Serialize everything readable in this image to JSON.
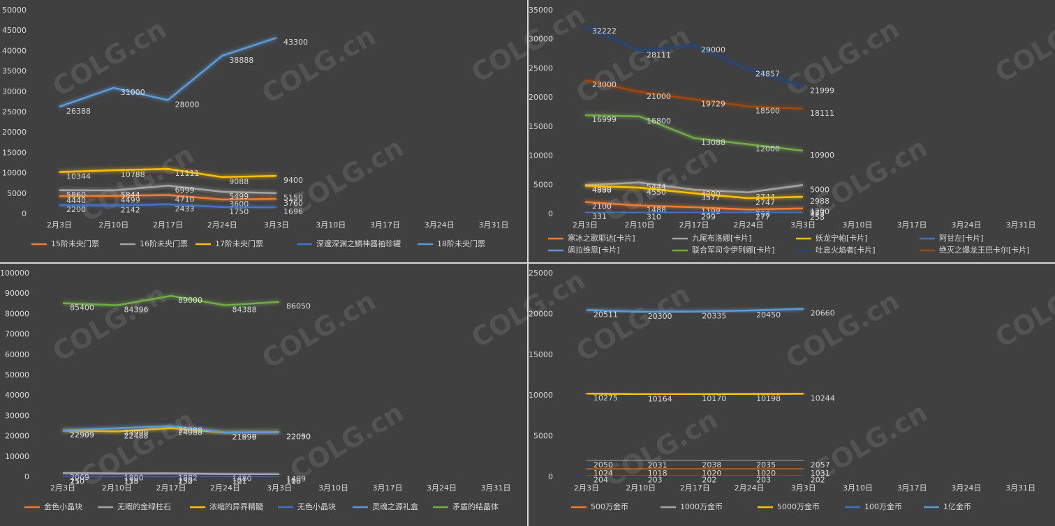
{
  "watermark": "COLG.cn",
  "chart_data": [
    {
      "type": "line",
      "grid": false,
      "categories": [
        "2月3日",
        "2月10日",
        "2月17日",
        "2月24日",
        "3月3日",
        "3月10日",
        "3月17日",
        "3月24日",
        "3月31日"
      ],
      "ylim": [
        0,
        50000
      ],
      "yticks": [
        0,
        5000,
        10000,
        15000,
        20000,
        25000,
        30000,
        35000,
        40000,
        45000,
        50000
      ],
      "series": [
        {
          "name": "15阶未央门票",
          "color": "#ed7d31",
          "values": [
            4440,
            4499,
            4710,
            3600,
            3760,
            null,
            null,
            null,
            null
          ]
        },
        {
          "name": "16阶未央门票",
          "color": "#a5a5a5",
          "values": [
            5860,
            5844,
            6999,
            5499,
            5150,
            null,
            null,
            null,
            null
          ]
        },
        {
          "name": "17阶未央门票",
          "color": "#ffc000",
          "values": [
            10344,
            10788,
            11111,
            9088,
            9400,
            null,
            null,
            null,
            null
          ]
        },
        {
          "name": "深邃深渊之鳞神器袖珍罐",
          "color": "#4472c4",
          "values": [
            2200,
            2142,
            2433,
            1750,
            1696,
            null,
            null,
            null,
            null
          ]
        },
        {
          "name": "18阶未央门票",
          "color": "#5b9bd5",
          "values": [
            26388,
            31000,
            28000,
            38888,
            43300,
            null,
            null,
            null,
            null
          ]
        }
      ]
    },
    {
      "type": "line",
      "grid": false,
      "categories": [
        "2月3日",
        "2月10日",
        "2月17日",
        "2月24日",
        "3月3日",
        "3月10日",
        "3月17日",
        "3月24日",
        "3月31日"
      ],
      "ylim": [
        0,
        35000
      ],
      "yticks": [
        0,
        5000,
        10000,
        15000,
        20000,
        25000,
        30000,
        35000
      ],
      "series": [
        {
          "name": "寒冰之歌耶达[卡片]",
          "color": "#ed7d31",
          "values": [
            2100,
            1488,
            1198,
            798,
            983,
            null,
            null,
            null,
            null
          ]
        },
        {
          "name": "九尾布洛娜[卡片]",
          "color": "#a5a5a5",
          "values": [
            4990,
            5444,
            4200,
            3744,
            5000,
            null,
            null,
            null,
            null
          ]
        },
        {
          "name": "妖龙宁帕[卡片]",
          "color": "#ffc000",
          "values": [
            4888,
            4550,
            3577,
            2747,
            2988,
            null,
            null,
            null,
            null
          ]
        },
        {
          "name": "阿甘左[卡片]",
          "color": "#4472c4",
          "values": [
            331,
            310,
            299,
            277,
            258,
            null,
            null,
            null,
            null
          ]
        },
        {
          "name": "飒拉维恩[卡片]",
          "color": "#5b9bd5",
          "values": [
            null,
            null,
            null,
            null,
            1200,
            null,
            null,
            null,
            null
          ]
        },
        {
          "name": "联合军司令伊列娜[卡片]",
          "color": "#70ad47",
          "values": [
            16999,
            16800,
            13088,
            12000,
            10900,
            null,
            null,
            null,
            null
          ]
        },
        {
          "name": "吐息火焰者[卡片]",
          "color": "#264478",
          "values": [
            32222,
            28111,
            29000,
            24857,
            21999,
            null,
            null,
            null,
            null
          ]
        },
        {
          "name": "绝灭之爆龙王巴卡尔[卡片]",
          "color": "#9e480e",
          "values": [
            23000,
            21000,
            19729,
            18500,
            18111,
            null,
            null,
            null,
            null
          ]
        }
      ]
    },
    {
      "type": "line",
      "grid": false,
      "categories": [
        "2月3日",
        "2月10日",
        "2月17日",
        "2月24日",
        "3月3日",
        "3月10日",
        "3月17日",
        "3月24日",
        "3月31日"
      ],
      "ylim": [
        0,
        100000
      ],
      "yticks": [
        0,
        10000,
        20000,
        30000,
        40000,
        50000,
        60000,
        70000,
        80000,
        90000,
        100000
      ],
      "series": [
        {
          "name": "金色小晶块",
          "color": "#ed7d31",
          "values": [
            150,
            135,
            152,
            101,
            108,
            null,
            null,
            null,
            null
          ]
        },
        {
          "name": "无暇的金绿柱石",
          "color": "#a5a5a5",
          "values": [
            2069,
            1800,
            1882,
            1480,
            1409,
            null,
            null,
            null,
            null
          ]
        },
        {
          "name": "浓缩的异界精髓",
          "color": "#ffc000",
          "values": [
            22909,
            22488,
            24088,
            21899,
            22090,
            null,
            null,
            null,
            null
          ]
        },
        {
          "name": "无色小晶块",
          "color": "#4472c4",
          "values": [
            210,
            110,
            230,
            121,
            110,
            null,
            null,
            null,
            null
          ]
        },
        {
          "name": "灵魂之源礼盒",
          "color": "#5b9bd5",
          "values": [
            22999,
            23999,
            25088,
            21996,
            22050,
            null,
            null,
            null,
            null
          ]
        },
        {
          "name": "矛盾的结晶体",
          "color": "#70ad47",
          "values": [
            85400,
            84396,
            89000,
            84388,
            86050,
            null,
            null,
            null,
            null
          ]
        }
      ]
    },
    {
      "type": "line",
      "grid": false,
      "categories": [
        "2月3日",
        "2月10日",
        "2月17日",
        "2月24日",
        "3月3日",
        "3月10日",
        "3月17日",
        "3月24日",
        "3月31日"
      ],
      "ylim": [
        0,
        25000
      ],
      "yticks": [
        0,
        5000,
        10000,
        15000,
        20000,
        25000
      ],
      "series": [
        {
          "name": "500万金币",
          "color": "#ed7d31",
          "values": [
            1024,
            1018,
            1020,
            1020,
            1031,
            null,
            null,
            null,
            null
          ]
        },
        {
          "name": "1000万金币",
          "color": "#a5a5a5",
          "values": [
            2050,
            2031,
            2038,
            2035,
            2057,
            null,
            null,
            null,
            null
          ]
        },
        {
          "name": "5000万金币",
          "color": "#ffc000",
          "values": [
            10275,
            10164,
            10170,
            10198,
            10244,
            null,
            null,
            null,
            null
          ]
        },
        {
          "name": "100万金币",
          "color": "#4472c4",
          "values": [
            204,
            203,
            202,
            203,
            202,
            null,
            null,
            null,
            null
          ]
        },
        {
          "name": "1亿金币",
          "color": "#5b9bd5",
          "values": [
            20511,
            20300,
            20335,
            20450,
            20660,
            null,
            null,
            null,
            null
          ]
        }
      ]
    }
  ]
}
